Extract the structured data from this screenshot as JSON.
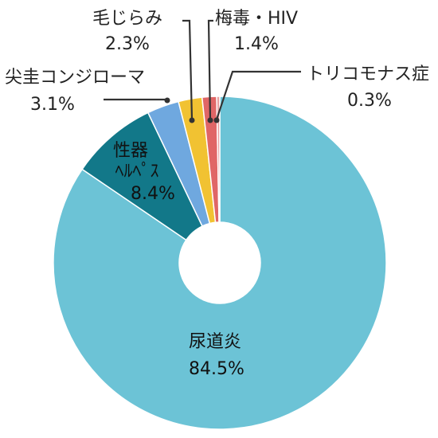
{
  "chart_data": {
    "type": "pie",
    "donut": true,
    "start_angle_deg": 0,
    "direction": "clockwise",
    "slices": [
      {
        "name": "尿道炎",
        "value": 84.5,
        "label": "84.5%",
        "color": "#6cc3d6"
      },
      {
        "name": "性器ヘルペス",
        "name_lines": [
          "性器",
          "ﾍﾙﾍﾟｽ"
        ],
        "value": 8.4,
        "label": "8.4%",
        "color": "#127889"
      },
      {
        "name": "尖圭コンジローマ",
        "value": 3.1,
        "label": "3.1%",
        "color": "#6fa8df"
      },
      {
        "name": "毛じらみ",
        "value": 2.3,
        "label": "2.3%",
        "color": "#f1c232"
      },
      {
        "name": "梅毒・HIV",
        "value": 1.4,
        "label": "1.4%",
        "color": "#e06666"
      },
      {
        "name": "トリコモナス症",
        "value": 0.3,
        "label": "0.3%",
        "color": "#e8a0a0"
      }
    ]
  }
}
